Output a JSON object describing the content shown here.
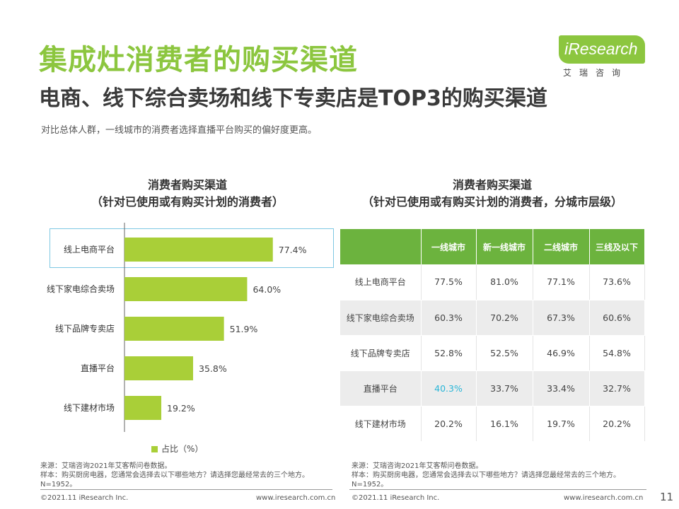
{
  "header": {
    "title": "集成灶消费者的购买渠道",
    "subtitle": "电商、线下综合卖场和线下专卖店是TOP3的购买渠道",
    "description": "对比总体人群，一线城市的消费者选择直播平台购买的偏好度更高。"
  },
  "logo": {
    "brand": "iResearch",
    "subtitle": "艾瑞咨询"
  },
  "left_chart": {
    "title_line1": "消费者购买渠道",
    "title_line2": "（针对已使用或有购买计划的消费者）",
    "legend_label": "占比（%）",
    "bar_color": "#a9cf38"
  },
  "chart_data": {
    "type": "bar",
    "orientation": "horizontal",
    "title": "消费者购买渠道（针对已使用或有购买计划的消费者）",
    "categories": [
      "线上电商平台",
      "线下家电综合卖场",
      "线下品牌专卖店",
      "直播平台",
      "线下建材市场"
    ],
    "values": [
      77.4,
      64.0,
      51.9,
      35.8,
      19.2
    ],
    "value_labels": [
      "77.4%",
      "64.0%",
      "51.9%",
      "35.8%",
      "19.2%"
    ],
    "series_name": "占比（%）",
    "xlim": [
      0,
      100
    ]
  },
  "right_table": {
    "title_line1": "消费者购买渠道",
    "title_line2": "（针对已使用或有购买计划的消费者，分城市层级）",
    "columns": [
      "",
      "一线城市",
      "新一线城市",
      "二线城市",
      "三线及以下"
    ],
    "rows": [
      {
        "label": "线上电商平台",
        "cells": [
          "77.5%",
          "81.0%",
          "77.1%",
          "73.6%"
        ]
      },
      {
        "label": "线下家电综合卖场",
        "cells": [
          "60.3%",
          "70.2%",
          "67.3%",
          "60.6%"
        ]
      },
      {
        "label": "线下品牌专卖店",
        "cells": [
          "52.8%",
          "52.5%",
          "46.9%",
          "54.8%"
        ]
      },
      {
        "label": "直播平台",
        "cells": [
          "40.3%",
          "33.7%",
          "33.4%",
          "32.7%"
        ]
      },
      {
        "label": "线下建材市场",
        "cells": [
          "20.2%",
          "16.1%",
          "19.7%",
          "20.2%"
        ]
      }
    ],
    "highlight_color": "#29b6d8",
    "header_color": "#6cb33e"
  },
  "notes": {
    "left": [
      "来源：艾瑞咨询2021年艾客帮问卷数据。",
      "样本：购买厨房电器，您通常会选择去以下哪些地方？请选择您最经常去的三个地方。",
      "N=1952。"
    ],
    "right": [
      "来源：艾瑞咨询2021年艾客帮问卷数据。",
      "样本：购买厨房电器，您通常会选择去以下哪些地方？请选择您最经常去的三个地方。",
      "N=1952。"
    ]
  },
  "footer": {
    "copyright_left": "©2021.11 iResearch Inc.",
    "url_left": "www.iresearch.com.cn",
    "copyright_right": "©2021.11 iResearch Inc.",
    "url_right": "www.iresearch.com.cn",
    "page_number": "11"
  }
}
